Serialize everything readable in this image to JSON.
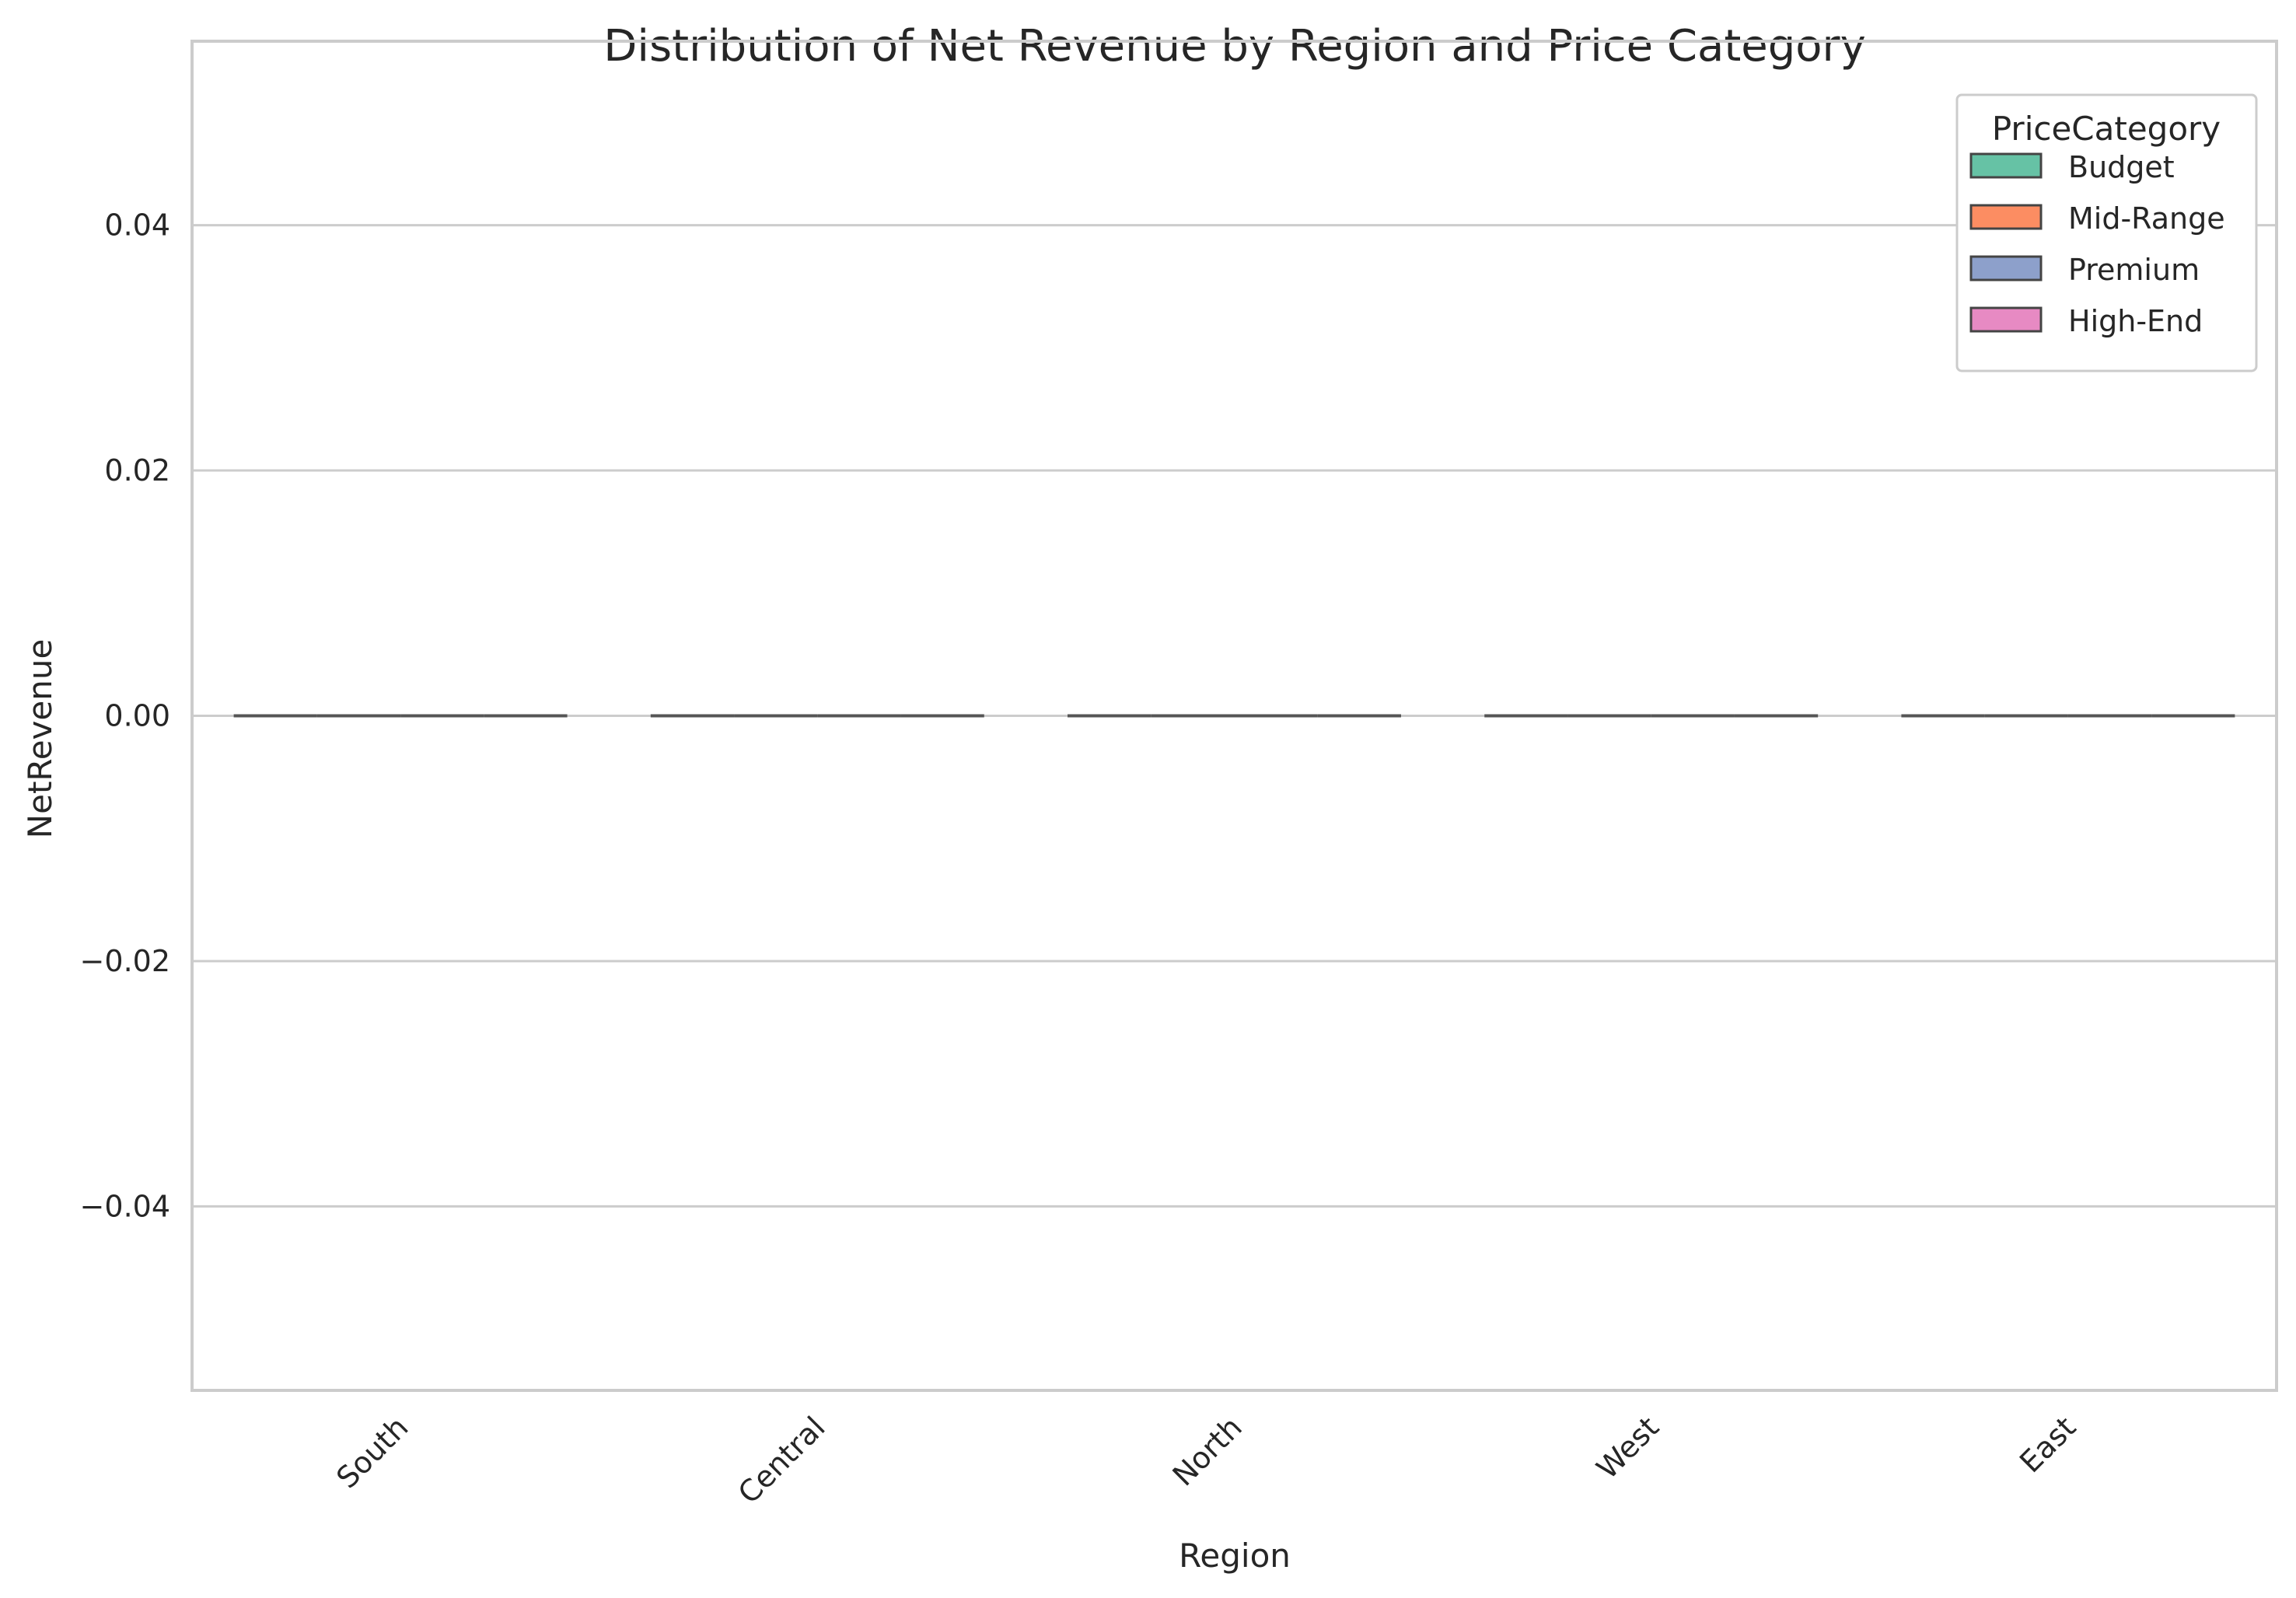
{
  "chart_data": {
    "type": "box",
    "title": "Distribution of Net Revenue by Region and Price Category",
    "xlabel": "Region",
    "ylabel": "NetRevenue",
    "categories": [
      "South",
      "Central",
      "North",
      "West",
      "East"
    ],
    "ylim": [
      -0.055,
      0.055
    ],
    "yticks": [
      0.04,
      0.02,
      0.0,
      -0.02,
      -0.04
    ],
    "ytick_labels": [
      "0.04",
      "0.02",
      "0.00",
      "−0.02",
      "−0.04"
    ],
    "grid": "horizontal",
    "legend": {
      "title": "PriceCategory",
      "placement": "top-right"
    },
    "series": [
      {
        "name": "Budget",
        "color": "#66c2a5",
        "values": [
          0,
          0,
          0,
          0,
          0
        ]
      },
      {
        "name": "Mid-Range",
        "color": "#fc8d62",
        "values": [
          0,
          0,
          0,
          0,
          0
        ]
      },
      {
        "name": "Premium",
        "color": "#8da0cb",
        "values": [
          0,
          0,
          0,
          0,
          0
        ]
      },
      {
        "name": "High-End",
        "color": "#e78ac3",
        "values": [
          0,
          0,
          0,
          0,
          0
        ]
      }
    ]
  }
}
